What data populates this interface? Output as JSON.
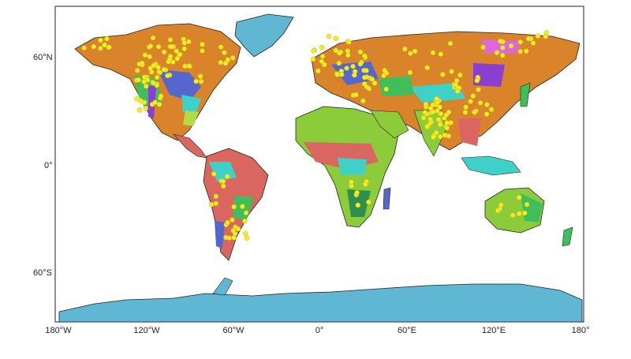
{
  "map": {
    "lat_labels": [
      "60°N",
      "0°",
      "60°S"
    ],
    "lon_labels": [
      "180°W",
      "120°W",
      "60°W",
      "0°",
      "60°E",
      "120°E",
      "180°"
    ],
    "colors": {
      "ocean_bg": "#ffffff",
      "ice": "#5fb7d3",
      "tundra_orange": "#d9832a",
      "desert_green": "#8ccc3a",
      "savanna_red": "#d9675f",
      "steppe_blue": "#5566cc",
      "temperate_green": "#3fbf5a",
      "tropical_teal": "#3fd0c8",
      "forest_dark": "#2f8f4f",
      "highland_purple": "#8a3fd0",
      "arid_pink": "#e066e0",
      "site_marker": "#f2ec2a"
    },
    "marker_icon": "yellow-dot-site-marker"
  }
}
